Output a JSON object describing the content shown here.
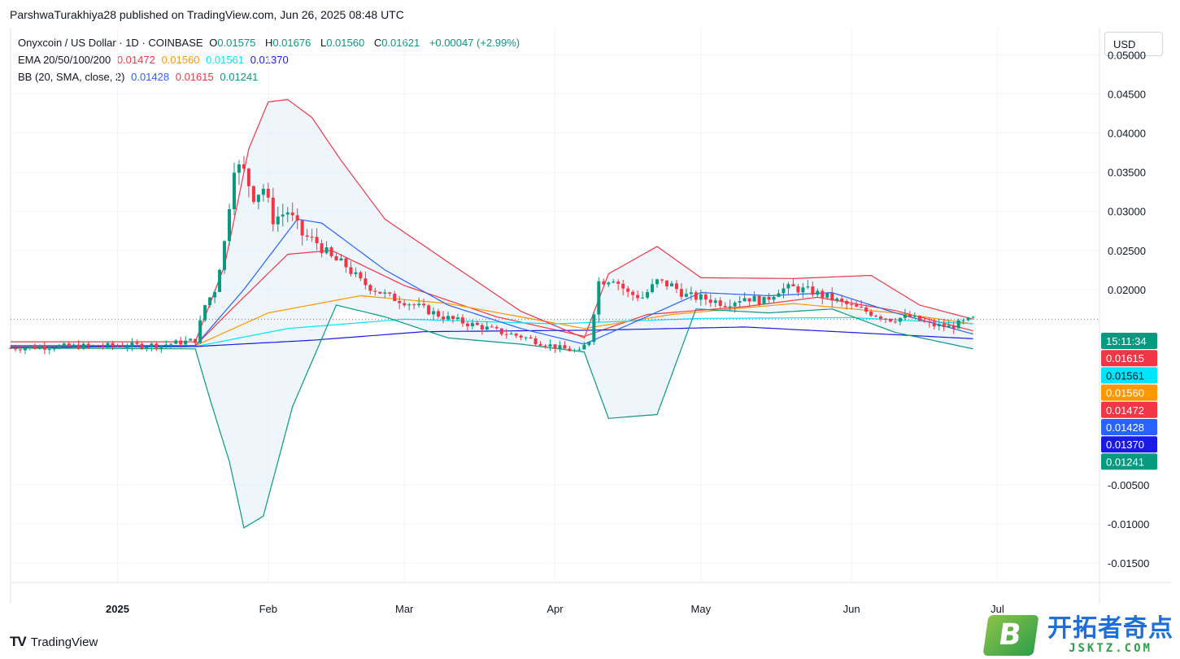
{
  "header": {
    "publisher_line": "ParshwaTurakhiya28 published on TradingView.com, Jun 26, 2025 08:48 UTC"
  },
  "legend": {
    "symbol": "Onyxcoin / US Dollar · 1D · COINBASE",
    "o_label": "O",
    "o_value": "0.01575",
    "h_label": "H",
    "h_value": "0.01676",
    "l_label": "L",
    "l_value": "0.01560",
    "c_label": "C",
    "c_value": "0.01621",
    "change": "+0.00047 (+2.99%)",
    "ema_label": "EMA 20/50/100/200",
    "ema_values": [
      "0.01472",
      "0.01560",
      "0.01561",
      "0.01370"
    ],
    "bb_label": "BB (20, SMA, close, 2)",
    "bb_values": [
      "0.01428",
      "0.01615",
      "0.01241"
    ]
  },
  "currency_button": "USD",
  "colors": {
    "up": "#089981",
    "down": "#f23645",
    "ema20": "#f23645",
    "ema50": "#ff9800",
    "ema100": "#00e5ff",
    "ema200": "#1a1ae6",
    "bb_basis": "#2962ff",
    "bb_upper": "#f23645",
    "bb_lower": "#089981",
    "bb_fill": "#e3eef9"
  },
  "footer": {
    "brand": "TradingView",
    "brand_icon": "tradingview-logo-icon"
  },
  "watermark": {
    "box_letter": "B",
    "cn": "开拓者奇点",
    "en": "JSKTZ.COM"
  },
  "chart_data": {
    "type": "candlestick",
    "title": "Onyxcoin / US Dollar · 1D · COINBASE",
    "y_axis": {
      "ticks": [
        "0.05000",
        "0.04500",
        "0.04000",
        "0.03500",
        "0.03000",
        "0.02500",
        "0.02000",
        "-0.00500",
        "-0.01000",
        "-0.01500"
      ],
      "ylim": [
        -0.0175,
        0.0535
      ]
    },
    "x_axis": {
      "ticks": [
        "2025",
        "Feb",
        "Mar",
        "Apr",
        "May",
        "Jun",
        "Jul"
      ],
      "range": [
        "2024-12-10",
        "2025-07-22"
      ]
    },
    "grid": true,
    "last_price": "0.01621",
    "countdown": "15:11:34",
    "price_labels": [
      {
        "text": "15:11:34",
        "color": "#089981"
      },
      {
        "text": "0.01615",
        "color": "#f23645"
      },
      {
        "text": "0.01561",
        "color": "#00e5ff"
      },
      {
        "text": "0.01560",
        "color": "#ff9800"
      },
      {
        "text": "0.01472",
        "color": "#f23645"
      },
      {
        "text": "0.01428",
        "color": "#2962ff"
      },
      {
        "text": "0.01370",
        "color": "#1a1ae6"
      },
      {
        "text": "0.01241",
        "color": "#089981"
      }
    ],
    "closes_by_date": [
      [
        "2024-12-10",
        0.0125
      ],
      [
        "2024-12-20",
        0.0127
      ],
      [
        "2025-01-01",
        0.0128
      ],
      [
        "2025-01-10",
        0.0129
      ],
      [
        "2025-01-17",
        0.0135
      ],
      [
        "2025-01-19",
        0.018
      ],
      [
        "2025-01-21",
        0.02
      ],
      [
        "2025-01-23",
        0.026
      ],
      [
        "2025-01-25",
        0.036
      ],
      [
        "2025-01-27",
        0.035
      ],
      [
        "2025-01-29",
        0.032
      ],
      [
        "2025-01-31",
        0.033
      ],
      [
        "2025-02-02",
        0.029
      ],
      [
        "2025-02-05",
        0.03
      ],
      [
        "2025-02-08",
        0.027
      ],
      [
        "2025-02-11",
        0.026
      ],
      [
        "2025-02-14",
        0.024
      ],
      [
        "2025-02-17",
        0.023
      ],
      [
        "2025-02-20",
        0.021
      ],
      [
        "2025-02-23",
        0.02
      ],
      [
        "2025-02-26",
        0.019
      ],
      [
        "2025-03-01",
        0.0185
      ],
      [
        "2025-03-05",
        0.0175
      ],
      [
        "2025-03-09",
        0.0165
      ],
      [
        "2025-03-13",
        0.0158
      ],
      [
        "2025-03-17",
        0.0152
      ],
      [
        "2025-03-21",
        0.0145
      ],
      [
        "2025-03-25",
        0.014
      ],
      [
        "2025-03-29",
        0.0132
      ],
      [
        "2025-04-02",
        0.0125
      ],
      [
        "2025-04-06",
        0.012
      ],
      [
        "2025-04-08",
        0.0135
      ],
      [
        "2025-04-10",
        0.021
      ],
      [
        "2025-04-13",
        0.0215
      ],
      [
        "2025-04-16",
        0.0195
      ],
      [
        "2025-04-19",
        0.019
      ],
      [
        "2025-04-22",
        0.021
      ],
      [
        "2025-04-25",
        0.0205
      ],
      [
        "2025-04-28",
        0.0192
      ],
      [
        "2025-05-02",
        0.0188
      ],
      [
        "2025-05-06",
        0.0182
      ],
      [
        "2025-05-10",
        0.019
      ],
      [
        "2025-05-14",
        0.0185
      ],
      [
        "2025-05-17",
        0.02
      ],
      [
        "2025-05-20",
        0.0202
      ],
      [
        "2025-05-24",
        0.0197
      ],
      [
        "2025-05-28",
        0.0188
      ],
      [
        "2025-06-01",
        0.0178
      ],
      [
        "2025-06-05",
        0.017
      ],
      [
        "2025-06-09",
        0.0162
      ],
      [
        "2025-06-13",
        0.0165
      ],
      [
        "2025-06-17",
        0.0155
      ],
      [
        "2025-06-21",
        0.0152
      ],
      [
        "2025-06-24",
        0.0158
      ],
      [
        "2025-06-26",
        0.0162
      ]
    ],
    "series": [
      {
        "name": "EMA 20",
        "color": "#f23645",
        "points": [
          [
            "2024-12-10",
            0.0128
          ],
          [
            "2025-01-17",
            0.0128
          ],
          [
            "2025-01-25",
            0.0178
          ],
          [
            "2025-02-05",
            0.0245
          ],
          [
            "2025-02-14",
            0.025
          ],
          [
            "2025-03-01",
            0.0205
          ],
          [
            "2025-03-20",
            0.0165
          ],
          [
            "2025-04-07",
            0.014
          ],
          [
            "2025-04-20",
            0.0168
          ],
          [
            "2025-05-10",
            0.0178
          ],
          [
            "2025-05-25",
            0.019
          ],
          [
            "2025-06-10",
            0.0173
          ],
          [
            "2025-06-26",
            0.0147
          ]
        ]
      },
      {
        "name": "EMA 50",
        "color": "#ff9800",
        "points": [
          [
            "2024-12-10",
            0.0127
          ],
          [
            "2025-01-17",
            0.0128
          ],
          [
            "2025-02-01",
            0.017
          ],
          [
            "2025-02-20",
            0.0192
          ],
          [
            "2025-03-10",
            0.0182
          ],
          [
            "2025-04-07",
            0.015
          ],
          [
            "2025-04-25",
            0.0168
          ],
          [
            "2025-05-20",
            0.0182
          ],
          [
            "2025-06-10",
            0.017
          ],
          [
            "2025-06-26",
            0.0156
          ]
        ]
      },
      {
        "name": "EMA 100",
        "color": "#00e5ff",
        "points": [
          [
            "2024-12-10",
            0.0126
          ],
          [
            "2025-01-17",
            0.0127
          ],
          [
            "2025-02-05",
            0.015
          ],
          [
            "2025-03-01",
            0.0162
          ],
          [
            "2025-04-01",
            0.0156
          ],
          [
            "2025-05-01",
            0.0163
          ],
          [
            "2025-06-01",
            0.0164
          ],
          [
            "2025-06-26",
            0.0156
          ]
        ]
      },
      {
        "name": "EMA 200",
        "color": "#1a1ae6",
        "points": [
          [
            "2024-12-10",
            0.0126
          ],
          [
            "2025-01-17",
            0.0127
          ],
          [
            "2025-02-10",
            0.0135
          ],
          [
            "2025-03-05",
            0.0146
          ],
          [
            "2025-04-10",
            0.0148
          ],
          [
            "2025-05-10",
            0.0152
          ],
          [
            "2025-06-26",
            0.0137
          ]
        ]
      },
      {
        "name": "BB basis",
        "color": "#2962ff",
        "points": [
          [
            "2024-12-10",
            0.0128
          ],
          [
            "2025-01-17",
            0.0128
          ],
          [
            "2025-01-27",
            0.02
          ],
          [
            "2025-02-07",
            0.029
          ],
          [
            "2025-02-12",
            0.0285
          ],
          [
            "2025-02-25",
            0.0225
          ],
          [
            "2025-03-10",
            0.018
          ],
          [
            "2025-03-25",
            0.015
          ],
          [
            "2025-04-07",
            0.013
          ],
          [
            "2025-04-18",
            0.016
          ],
          [
            "2025-05-01",
            0.0196
          ],
          [
            "2025-05-15",
            0.0192
          ],
          [
            "2025-05-28",
            0.0196
          ],
          [
            "2025-06-10",
            0.017
          ],
          [
            "2025-06-26",
            0.0143
          ]
        ]
      },
      {
        "name": "BB upper",
        "color": "#f23645",
        "points": [
          [
            "2024-12-10",
            0.0133
          ],
          [
            "2025-01-17",
            0.0133
          ],
          [
            "2025-01-23",
            0.023
          ],
          [
            "2025-01-28",
            0.038
          ],
          [
            "2025-02-01",
            0.044
          ],
          [
            "2025-02-05",
            0.0443
          ],
          [
            "2025-02-10",
            0.042
          ],
          [
            "2025-02-16",
            0.0365
          ],
          [
            "2025-02-25",
            0.029
          ],
          [
            "2025-03-10",
            0.0235
          ],
          [
            "2025-03-25",
            0.0172
          ],
          [
            "2025-04-07",
            0.0138
          ],
          [
            "2025-04-12",
            0.022
          ],
          [
            "2025-04-22",
            0.0255
          ],
          [
            "2025-05-01",
            0.0215
          ],
          [
            "2025-05-20",
            0.0214
          ],
          [
            "2025-06-05",
            0.0218
          ],
          [
            "2025-06-15",
            0.018
          ],
          [
            "2025-06-26",
            0.0162
          ]
        ]
      },
      {
        "name": "BB lower",
        "color": "#089981",
        "points": [
          [
            "2024-12-10",
            0.0125
          ],
          [
            "2025-01-17",
            0.0124
          ],
          [
            "2025-01-20",
            0.006
          ],
          [
            "2025-01-24",
            -0.002
          ],
          [
            "2025-01-27",
            -0.0105
          ],
          [
            "2025-01-31",
            -0.009
          ],
          [
            "2025-02-06",
            0.005
          ],
          [
            "2025-02-15",
            0.018
          ],
          [
            "2025-02-25",
            0.0165
          ],
          [
            "2025-03-10",
            0.0138
          ],
          [
            "2025-03-25",
            0.013
          ],
          [
            "2025-04-07",
            0.012
          ],
          [
            "2025-04-12",
            0.0035
          ],
          [
            "2025-04-22",
            0.004
          ],
          [
            "2025-04-30",
            0.0175
          ],
          [
            "2025-05-15",
            0.017
          ],
          [
            "2025-05-28",
            0.0175
          ],
          [
            "2025-06-10",
            0.0145
          ],
          [
            "2025-06-26",
            0.0124
          ]
        ]
      }
    ]
  }
}
